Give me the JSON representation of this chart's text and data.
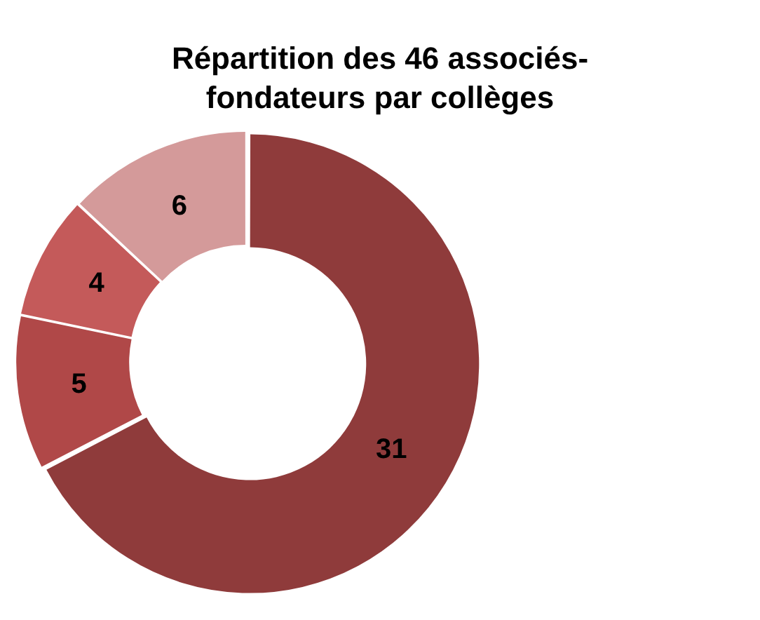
{
  "chart_data": {
    "type": "donut",
    "title": "Répartition des 46 associés-fondateurs par collèges",
    "categories": [
      null,
      null,
      null,
      null
    ],
    "values": [
      31,
      5,
      4,
      6
    ],
    "colors": [
      "#8f3b3b",
      "#b04848",
      "#c45a5a",
      "#d49a9a"
    ],
    "data_labels": true,
    "legend": false
  }
}
